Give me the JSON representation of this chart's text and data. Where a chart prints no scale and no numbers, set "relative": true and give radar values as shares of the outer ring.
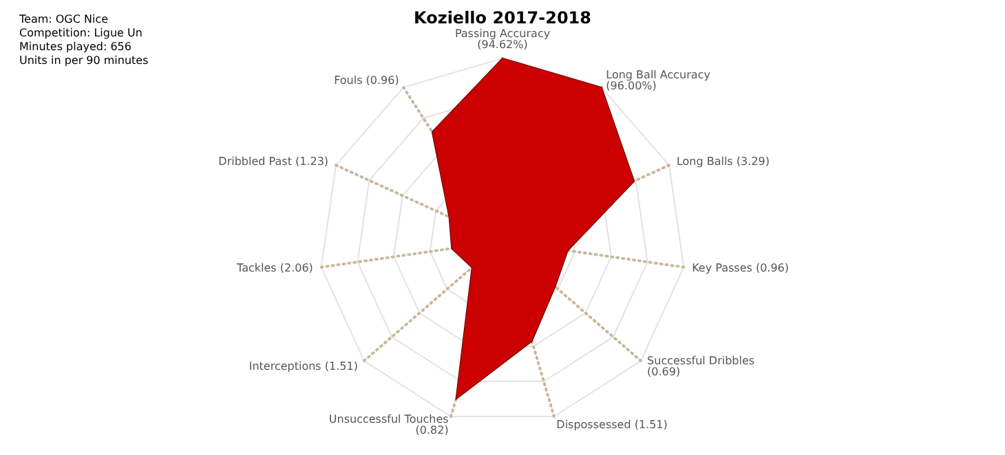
{
  "chart_data": {
    "type": "radar",
    "title": "Koziello 2017-2018",
    "annotations": [
      "Team: OGC Nice",
      "Competition: Ligue Un",
      "Minutes played: 656",
      "Units in per 90 minutes"
    ],
    "categories": [
      "Passing Accuracy (94.62%)",
      "Long Ball Accuracy (96.00%)",
      "Long Balls (3.29)",
      "Key Passes (0.96)",
      "Successful Dribbles (0.69)",
      "Dispossessed (1.51)",
      "Unsuccessful Touches (0.82)",
      "Interceptions (1.51)",
      "Tackles (2.06)",
      "Dribbled Past (1.23)",
      "Fouls (0.96)"
    ],
    "relative": true,
    "series": [
      {
        "color": "#cc0000",
        "values": [
          1.0,
          1.0,
          0.79,
          0.36,
          0.38,
          0.57,
          0.9,
          0.22,
          0.28,
          0.32,
          0.71
        ]
      }
    ],
    "grid": true
  }
}
